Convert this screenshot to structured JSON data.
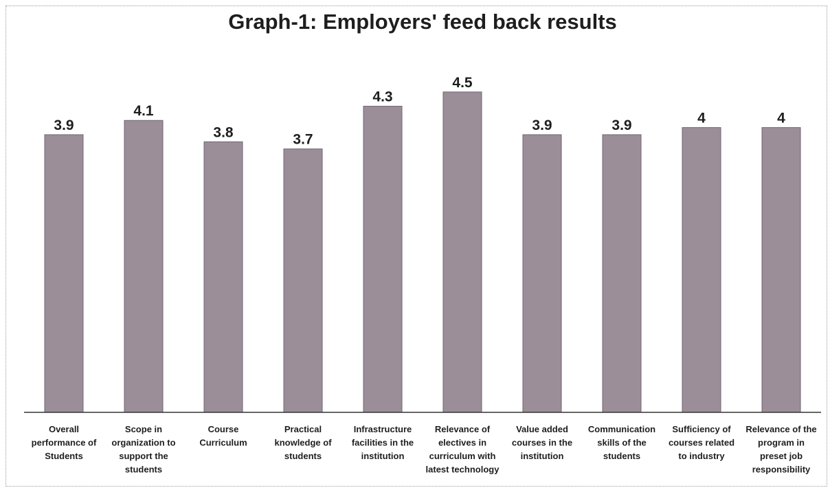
{
  "chart_data": {
    "type": "bar",
    "title": "Graph-1: Employers' feed back results",
    "xlabel": "",
    "ylabel": "",
    "ylim": [
      0,
      5
    ],
    "grid": false,
    "bar_color": "#9c8e99",
    "categories": [
      "Overall performance of Students",
      "Scope in organization to support the students",
      "Course Curriculum",
      "Practical knowledge of students",
      "Infrastructure facilities in the institution",
      "Relevance of electives in curriculum with latest technology",
      "Value added courses in the institution",
      "Communication skills of the students",
      "Sufficiency of courses related to industry",
      "Relevance of the program in preset job responsibility"
    ],
    "category_lines": [
      [
        "Overall",
        "performance of",
        "Students"
      ],
      [
        "Scope in",
        "organization to",
        "support the",
        "students"
      ],
      [
        "Course",
        "Curriculum"
      ],
      [
        "Practical",
        "knowledge of",
        "students"
      ],
      [
        "Infrastructure",
        "facilities in the",
        "institution"
      ],
      [
        "Relevance of",
        "electives in",
        "curriculum with",
        "latest technology"
      ],
      [
        "Value added",
        "courses in the",
        "institution"
      ],
      [
        "Communication",
        "skills of the",
        "students"
      ],
      [
        "Sufficiency of",
        "courses related",
        "to industry"
      ],
      [
        "Relevance of the",
        "program in",
        "preset job",
        "responsibility"
      ]
    ],
    "values": [
      3.9,
      4.1,
      3.8,
      3.7,
      4.3,
      4.5,
      3.9,
      3.9,
      4,
      4
    ],
    "value_labels": [
      "3.9",
      "4.1",
      "3.8",
      "3.7",
      "4.3",
      "4.5",
      "3.9",
      "3.9",
      "4",
      "4"
    ]
  }
}
